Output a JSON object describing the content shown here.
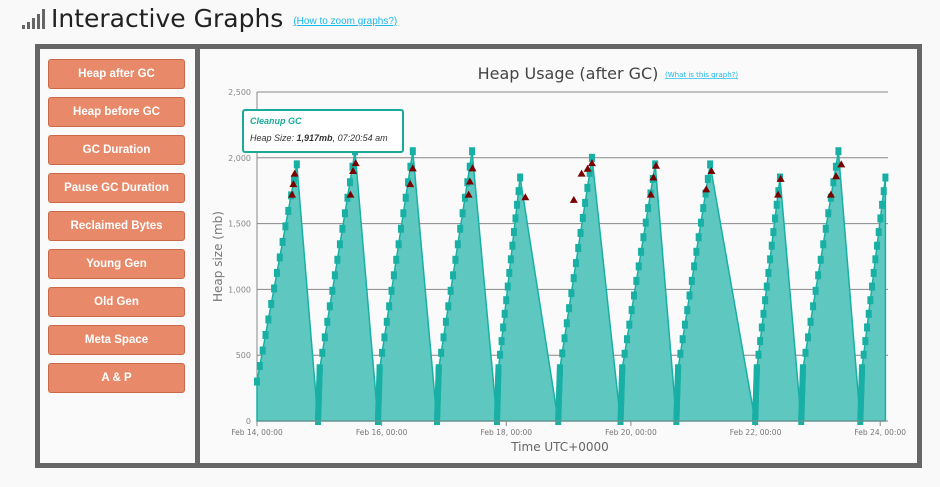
{
  "header": {
    "title": "Interactive Graphs",
    "help_link": "(How to zoom graphs?)",
    "icon": "signal-bars-icon"
  },
  "sidebar": {
    "buttons": [
      "Heap after GC",
      "Heap before GC",
      "GC Duration",
      "Pause GC Duration",
      "Reclaimed Bytes",
      "Young Gen",
      "Old Gen",
      "Meta Space",
      "A & P"
    ]
  },
  "colors": {
    "area": "#5ec8c0",
    "line": "#18b0a4",
    "cleanup": "#7a0000",
    "button": "#e88a6a",
    "frame": "#666666",
    "link": "#1cb8e8"
  },
  "tooltip": {
    "title": "Cleanup GC",
    "label": "Heap Size: ",
    "value": "1,917mb",
    "time": ", 07:20:54 am"
  },
  "chart_data": {
    "type": "area",
    "title": "Heap Usage (after GC)",
    "help_link": "(What is this graph?)",
    "xlabel": "Time UTC+0000",
    "ylabel": "Heap size (mb)",
    "ylim": [
      0,
      2500
    ],
    "yticks": [
      0,
      500,
      1000,
      1500,
      2000,
      2500
    ],
    "ytick_labels": [
      "0",
      "500",
      "1,000",
      "1,500",
      "2,000",
      "2,500"
    ],
    "xlim": [
      "2024-02-14T00:00",
      "2024-02-24T03:00"
    ],
    "xticks": [
      "2024-02-14T00:00",
      "2024-02-16T00:00",
      "2024-02-18T00:00",
      "2024-02-20T00:00",
      "2024-02-22T00:00",
      "2024-02-24T00:00"
    ],
    "xtick_labels": [
      "Feb 14, 00:00",
      "Feb 16, 00:00",
      "Feb 18, 00:00",
      "Feb 20, 00:00",
      "Feb 22, 00:00",
      "Feb 24, 00:00"
    ],
    "grid": true,
    "series": [
      {
        "type": "area",
        "points": [
          [
            "2024-02-14T00:00",
            300
          ],
          [
            "2024-02-14T15:20",
            1950
          ],
          [
            "2024-02-14T23:30",
            0
          ],
          [
            "2024-02-15T00:10",
            400
          ],
          [
            "2024-02-15T13:45",
            2050
          ],
          [
            "2024-02-15T22:35",
            0
          ],
          [
            "2024-02-15T23:15",
            400
          ],
          [
            "2024-02-16T12:00",
            2050
          ],
          [
            "2024-02-16T21:20",
            0
          ],
          [
            "2024-02-16T22:00",
            400
          ],
          [
            "2024-02-17T10:50",
            2050
          ],
          [
            "2024-02-17T20:25",
            0
          ],
          [
            "2024-02-17T21:00",
            400
          ],
          [
            "2024-02-18T05:20",
            1850
          ],
          [
            "2024-02-18T20:00",
            0
          ],
          [
            "2024-02-18T20:40",
            400
          ],
          [
            "2024-02-19T09:00",
            2000
          ],
          [
            "2024-02-19T20:00",
            0
          ],
          [
            "2024-02-19T20:40",
            400
          ],
          [
            "2024-02-20T09:20",
            1950
          ],
          [
            "2024-02-20T17:30",
            0
          ],
          [
            "2024-02-20T18:10",
            400
          ],
          [
            "2024-02-21T06:30",
            1950
          ],
          [
            "2024-02-21T23:50",
            0
          ],
          [
            "2024-02-22T00:30",
            400
          ],
          [
            "2024-02-22T09:25",
            1850
          ],
          [
            "2024-02-22T17:35",
            0
          ],
          [
            "2024-02-22T18:15",
            400
          ],
          [
            "2024-02-23T07:55",
            2050
          ],
          [
            "2024-02-23T16:20",
            0
          ],
          [
            "2024-02-23T17:00",
            400
          ],
          [
            "2024-02-24T02:00",
            1850
          ]
        ]
      },
      {
        "name": "Cleanup GC",
        "type": "scatter",
        "points": [
          [
            "2024-02-14T13:30",
            1720
          ],
          [
            "2024-02-14T14:00",
            1800
          ],
          [
            "2024-02-14T14:30",
            1880
          ],
          [
            "2024-02-15T12:00",
            1720
          ],
          [
            "2024-02-15T13:00",
            1900
          ],
          [
            "2024-02-15T14:00",
            1960
          ],
          [
            "2024-02-16T11:00",
            1800
          ],
          [
            "2024-02-16T12:00",
            1920
          ],
          [
            "2024-02-17T09:30",
            1720
          ],
          [
            "2024-02-17T10:00",
            1820
          ],
          [
            "2024-02-17T11:00",
            1920
          ],
          [
            "2024-02-18T07:20",
            1700
          ],
          [
            "2024-02-19T02:00",
            1680
          ],
          [
            "2024-02-19T05:00",
            1880
          ],
          [
            "2024-02-19T07:20",
            1917
          ],
          [
            "2024-02-19T09:00",
            1960
          ],
          [
            "2024-02-20T07:40",
            1720
          ],
          [
            "2024-02-20T08:40",
            1850
          ],
          [
            "2024-02-20T09:40",
            1940
          ],
          [
            "2024-02-21T05:00",
            1760
          ],
          [
            "2024-02-21T07:00",
            1900
          ],
          [
            "2024-02-22T08:40",
            1720
          ],
          [
            "2024-02-22T09:40",
            1840
          ],
          [
            "2024-02-23T05:00",
            1720
          ],
          [
            "2024-02-23T07:00",
            1860
          ],
          [
            "2024-02-23T09:00",
            1950
          ]
        ]
      }
    ]
  }
}
